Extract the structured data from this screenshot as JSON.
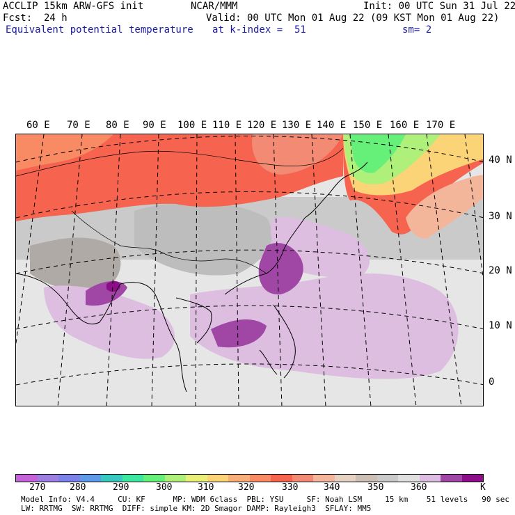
{
  "header": {
    "title_left": "ACCLIP 15km ARW-GFS init",
    "title_center": "NCAR/MMM",
    "init_text": "Init: 00 UTC Sun 31 Jul 22",
    "fcst_text": "Fcst:  24 h",
    "valid_text": "Valid: 00 UTC Mon 01 Aug 22 (09 KST Mon 01 Aug 22)",
    "field_name": "Equivalent potential temperature",
    "level_text": "at k-index =  51",
    "smoothing_text": "sm= 2"
  },
  "map": {
    "lon_labels": [
      "60 E",
      "70 E",
      "80 E",
      "90 E",
      "100 E",
      "110 E",
      "120 E",
      "130 E",
      "140 E",
      "150 E",
      "160 E",
      "170 E"
    ],
    "lat_labels": [
      "40 N",
      "30 N",
      "20 N",
      "10 N",
      "0"
    ]
  },
  "colorbar": {
    "colors": [
      "#c463d8",
      "#9e7ee0",
      "#7d82e8",
      "#5f9ae8",
      "#39c8c0",
      "#3ce8a0",
      "#66f07a",
      "#aef07a",
      "#e8f07a",
      "#fcd478",
      "#f8ae78",
      "#f88a64",
      "#f66450",
      "#f28a74",
      "#f4b69a",
      "#e6d2c2",
      "#cdbfb4",
      "#cacaca",
      "#e0e0e0",
      "#ddbde0",
      "#a046a4",
      "#8c0e88"
    ],
    "tick_labels": [
      "270",
      "280",
      "290",
      "300",
      "310",
      "320",
      "330",
      "340",
      "350",
      "360"
    ],
    "unit": "K"
  },
  "footer": {
    "line1": "Model Info: V4.4     CU: KF      MP: WDM 6class  PBL: YSU     SF: Noah LSM     15 km    51 levels   90 sec",
    "line2": "LW: RRTMG  SW: RRTMG  DIFF: simple KM: 2D Smagor DAMP: Rayleigh3  SFLAY: MM5"
  }
}
